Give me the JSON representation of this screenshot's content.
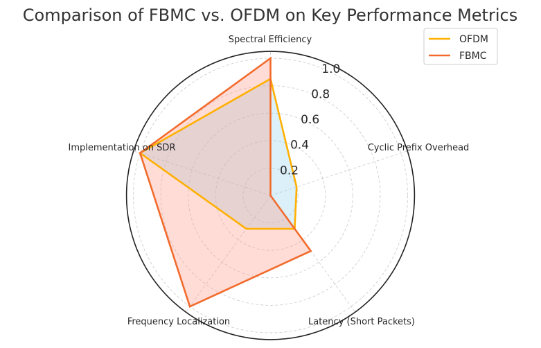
{
  "chart_data": {
    "type": "radar",
    "title": "Comparison of FBMC vs. OFDM on Key Performance Metrics",
    "categories": [
      "Spectral Efficiency",
      "Cyclic Prefix Overhead",
      "Latency (Short Packets)",
      "Frequency Localization",
      "Implementation on SDR"
    ],
    "series": [
      {
        "name": "OFDM",
        "values": [
          0.85,
          0.2,
          0.3,
          0.3,
          1.0
        ],
        "line_color": "#ffb000",
        "fill_color": "#87ceeb",
        "fill_opacity": 0.3
      },
      {
        "name": "FBMC",
        "values": [
          1.0,
          0.0,
          0.5,
          1.0,
          1.0
        ],
        "line_color": "#f26b2c",
        "fill_color": "#ff9a8a",
        "fill_opacity": 0.35
      }
    ],
    "rticks": [
      0.2,
      0.4,
      0.6,
      0.8,
      1.0
    ],
    "rtick_labels": [
      "0.2",
      "0.4",
      "0.6",
      "0.8",
      "1.0"
    ],
    "rlim": [
      0,
      1.05
    ],
    "grid": true,
    "legend_position": "top-right"
  }
}
